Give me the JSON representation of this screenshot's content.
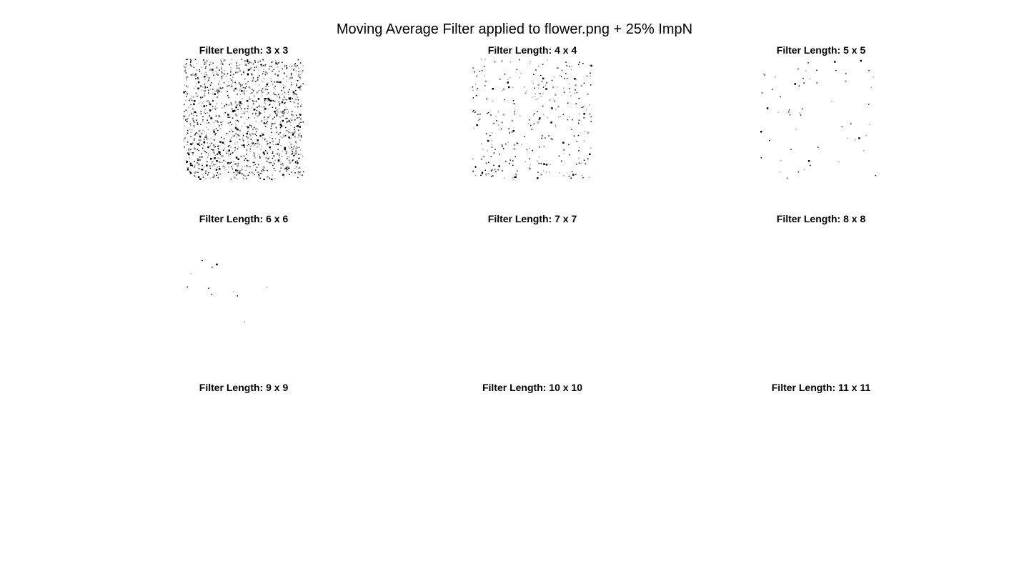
{
  "figure": {
    "title": "Moving Average Filter applied to flower.png + 25% ImpN"
  },
  "panels": [
    {
      "title": "Filter Length: 3 x 3",
      "noise_density": 0.18
    },
    {
      "title": "Filter Length: 4 x 4",
      "noise_density": 0.045
    },
    {
      "title": "Filter Length: 5 x 5",
      "noise_density": 0.008
    },
    {
      "title": "Filter Length: 6 x 6",
      "noise_density": 0.0015
    },
    {
      "title": "Filter Length: 7 x 7",
      "noise_density": 0
    },
    {
      "title": "Filter Length: 8 x 8",
      "noise_density": 0
    },
    {
      "title": "Filter Length: 9 x 9",
      "noise_density": 0
    },
    {
      "title": "Filter Length: 10 x 10",
      "noise_density": 0
    },
    {
      "title": "Filter Length: 11 x 11",
      "noise_density": 0
    }
  ],
  "colors": {
    "background": "#ffffff",
    "pixel_dark": "#000000",
    "pixel_gray": "#9a9a9a"
  }
}
